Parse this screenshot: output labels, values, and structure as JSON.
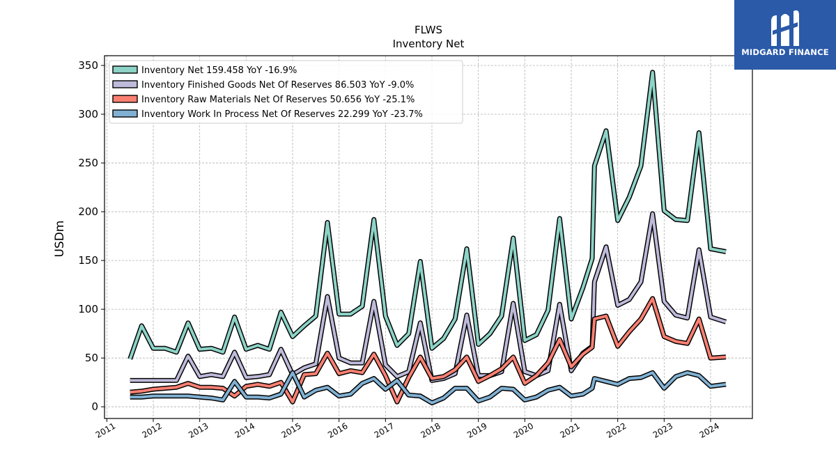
{
  "logo": {
    "text": "MIDGARD FINANCE",
    "icon": "midgard-m-logo-icon",
    "color": "#2a5aa8"
  },
  "chart_data": {
    "type": "line",
    "title": "FLWS",
    "subtitle": "Inventory Net",
    "xlabel": "",
    "ylabel": "USDm",
    "ylim": [
      -12,
      360
    ],
    "xlim": [
      2010.95,
      2024.9
    ],
    "yticks": [
      0,
      50,
      100,
      150,
      200,
      250,
      300,
      350
    ],
    "xticks": [
      2011,
      2012,
      2013,
      2014,
      2015,
      2016,
      2017,
      2018,
      2019,
      2020,
      2021,
      2022,
      2023,
      2024
    ],
    "grid": true,
    "legend_position": "top-left",
    "series": [
      {
        "name": "Inventory Net  159.458 YoY -16.9%",
        "color": "#8dd3c7",
        "points": [
          [
            2011.5,
            49
          ],
          [
            2011.75,
            83
          ],
          [
            2012.0,
            60
          ],
          [
            2012.25,
            60
          ],
          [
            2012.5,
            56
          ],
          [
            2012.75,
            86
          ],
          [
            2013.0,
            59
          ],
          [
            2013.25,
            60
          ],
          [
            2013.5,
            56
          ],
          [
            2013.75,
            92
          ],
          [
            2014.0,
            59
          ],
          [
            2014.25,
            63
          ],
          [
            2014.5,
            59
          ],
          [
            2014.75,
            97
          ],
          [
            2015.0,
            72
          ],
          [
            2015.25,
            83
          ],
          [
            2015.5,
            93
          ],
          [
            2015.75,
            189
          ],
          [
            2016.0,
            95
          ],
          [
            2016.25,
            95
          ],
          [
            2016.5,
            103
          ],
          [
            2016.75,
            192
          ],
          [
            2017.0,
            93
          ],
          [
            2017.25,
            63
          ],
          [
            2017.5,
            75
          ],
          [
            2017.75,
            149
          ],
          [
            2018.0,
            60
          ],
          [
            2018.25,
            70
          ],
          [
            2018.5,
            90
          ],
          [
            2018.75,
            162
          ],
          [
            2019.0,
            64
          ],
          [
            2019.25,
            75
          ],
          [
            2019.5,
            93
          ],
          [
            2019.75,
            173
          ],
          [
            2020.0,
            68
          ],
          [
            2020.25,
            74
          ],
          [
            2020.5,
            99
          ],
          [
            2020.75,
            193
          ],
          [
            2021.0,
            90
          ],
          [
            2021.25,
            122
          ],
          [
            2021.45,
            152
          ],
          [
            2021.5,
            247
          ],
          [
            2021.75,
            283
          ],
          [
            2022.0,
            191
          ],
          [
            2022.25,
            215
          ],
          [
            2022.5,
            247
          ],
          [
            2022.75,
            343
          ],
          [
            2023.0,
            201
          ],
          [
            2023.25,
            192
          ],
          [
            2023.5,
            191
          ],
          [
            2023.75,
            281
          ],
          [
            2024.0,
            162
          ],
          [
            2024.33,
            159
          ]
        ]
      },
      {
        "name": "Inventory Finished Goods Net Of Reserves  86.503 YoY -9.0%",
        "color": "#bebada",
        "points": [
          [
            2011.5,
            27
          ],
          [
            2011.75,
            27
          ],
          [
            2012.0,
            27
          ],
          [
            2012.25,
            27
          ],
          [
            2012.5,
            27
          ],
          [
            2012.75,
            52
          ],
          [
            2013.0,
            31
          ],
          [
            2013.25,
            33
          ],
          [
            2013.5,
            31
          ],
          [
            2013.75,
            56
          ],
          [
            2014.0,
            30
          ],
          [
            2014.25,
            31
          ],
          [
            2014.5,
            33
          ],
          [
            2014.75,
            59
          ],
          [
            2015.0,
            33
          ],
          [
            2015.25,
            40
          ],
          [
            2015.5,
            44
          ],
          [
            2015.75,
            113
          ],
          [
            2016.0,
            50
          ],
          [
            2016.25,
            45
          ],
          [
            2016.5,
            45
          ],
          [
            2016.75,
            108
          ],
          [
            2017.0,
            43
          ],
          [
            2017.25,
            31
          ],
          [
            2017.5,
            36
          ],
          [
            2017.75,
            86
          ],
          [
            2018.0,
            27
          ],
          [
            2018.25,
            29
          ],
          [
            2018.5,
            34
          ],
          [
            2018.75,
            94
          ],
          [
            2019.0,
            32
          ],
          [
            2019.25,
            32
          ],
          [
            2019.5,
            36
          ],
          [
            2019.75,
            106
          ],
          [
            2020.0,
            36
          ],
          [
            2020.25,
            32
          ],
          [
            2020.5,
            37
          ],
          [
            2020.75,
            105
          ],
          [
            2021.0,
            37
          ],
          [
            2021.25,
            55
          ],
          [
            2021.45,
            62
          ],
          [
            2021.5,
            128
          ],
          [
            2021.75,
            164
          ],
          [
            2022.0,
            104
          ],
          [
            2022.25,
            110
          ],
          [
            2022.5,
            128
          ],
          [
            2022.75,
            198
          ],
          [
            2023.0,
            108
          ],
          [
            2023.25,
            94
          ],
          [
            2023.5,
            91
          ],
          [
            2023.75,
            161
          ],
          [
            2024.0,
            92
          ],
          [
            2024.33,
            87
          ]
        ]
      },
      {
        "name": "Inventory Raw Materials Net Of Reserves  50.656 YoY -25.1%",
        "color": "#fb8072",
        "points": [
          [
            2011.5,
            15
          ],
          [
            2011.75,
            16
          ],
          [
            2012.0,
            18
          ],
          [
            2012.25,
            19
          ],
          [
            2012.5,
            20
          ],
          [
            2012.75,
            24
          ],
          [
            2013.0,
            20
          ],
          [
            2013.25,
            20
          ],
          [
            2013.5,
            19
          ],
          [
            2013.75,
            11
          ],
          [
            2014.0,
            21
          ],
          [
            2014.25,
            23
          ],
          [
            2014.5,
            21
          ],
          [
            2014.75,
            25
          ],
          [
            2015.0,
            5
          ],
          [
            2015.25,
            33
          ],
          [
            2015.5,
            34
          ],
          [
            2015.75,
            55
          ],
          [
            2016.0,
            34
          ],
          [
            2016.25,
            37
          ],
          [
            2016.5,
            35
          ],
          [
            2016.75,
            54
          ],
          [
            2017.0,
            32
          ],
          [
            2017.25,
            5
          ],
          [
            2017.5,
            30
          ],
          [
            2017.75,
            51
          ],
          [
            2018.0,
            29
          ],
          [
            2018.25,
            31
          ],
          [
            2018.5,
            38
          ],
          [
            2018.75,
            51
          ],
          [
            2019.0,
            26
          ],
          [
            2019.25,
            32
          ],
          [
            2019.5,
            39
          ],
          [
            2019.75,
            51
          ],
          [
            2020.0,
            24
          ],
          [
            2020.25,
            32
          ],
          [
            2020.5,
            45
          ],
          [
            2020.75,
            69
          ],
          [
            2021.0,
            41
          ],
          [
            2021.25,
            54
          ],
          [
            2021.45,
            61
          ],
          [
            2021.5,
            90
          ],
          [
            2021.75,
            93
          ],
          [
            2022.0,
            62
          ],
          [
            2022.25,
            77
          ],
          [
            2022.5,
            90
          ],
          [
            2022.75,
            111
          ],
          [
            2023.0,
            72
          ],
          [
            2023.25,
            67
          ],
          [
            2023.5,
            65
          ],
          [
            2023.75,
            90
          ],
          [
            2024.0,
            50
          ],
          [
            2024.33,
            51
          ]
        ]
      },
      {
        "name": "Inventory Work In Process Net Of Reserves  22.299 YoY -23.7%",
        "color": "#80b1d3",
        "points": [
          [
            2011.5,
            10
          ],
          [
            2011.75,
            10
          ],
          [
            2012.0,
            11
          ],
          [
            2012.25,
            11
          ],
          [
            2012.5,
            11
          ],
          [
            2012.75,
            11
          ],
          [
            2013.0,
            10
          ],
          [
            2013.25,
            9
          ],
          [
            2013.5,
            7
          ],
          [
            2013.75,
            26
          ],
          [
            2014.0,
            10
          ],
          [
            2014.25,
            10
          ],
          [
            2014.5,
            9
          ],
          [
            2014.75,
            13
          ],
          [
            2015.0,
            35
          ],
          [
            2015.25,
            10
          ],
          [
            2015.5,
            17
          ],
          [
            2015.75,
            20
          ],
          [
            2016.0,
            11
          ],
          [
            2016.25,
            13
          ],
          [
            2016.5,
            24
          ],
          [
            2016.75,
            29
          ],
          [
            2017.0,
            18
          ],
          [
            2017.25,
            27
          ],
          [
            2017.5,
            12
          ],
          [
            2017.75,
            11
          ],
          [
            2018.0,
            4
          ],
          [
            2018.25,
            9
          ],
          [
            2018.5,
            19
          ],
          [
            2018.75,
            19
          ],
          [
            2019.0,
            6
          ],
          [
            2019.25,
            10
          ],
          [
            2019.5,
            19
          ],
          [
            2019.75,
            18
          ],
          [
            2020.0,
            7
          ],
          [
            2020.25,
            10
          ],
          [
            2020.5,
            17
          ],
          [
            2020.75,
            20
          ],
          [
            2021.0,
            11
          ],
          [
            2021.25,
            13
          ],
          [
            2021.45,
            19
          ],
          [
            2021.5,
            29
          ],
          [
            2021.75,
            26
          ],
          [
            2022.0,
            23
          ],
          [
            2022.25,
            29
          ],
          [
            2022.5,
            30
          ],
          [
            2022.75,
            35
          ],
          [
            2023.0,
            19
          ],
          [
            2023.25,
            31
          ],
          [
            2023.5,
            35
          ],
          [
            2023.75,
            32
          ],
          [
            2024.0,
            21
          ],
          [
            2024.33,
            23
          ]
        ]
      }
    ]
  }
}
